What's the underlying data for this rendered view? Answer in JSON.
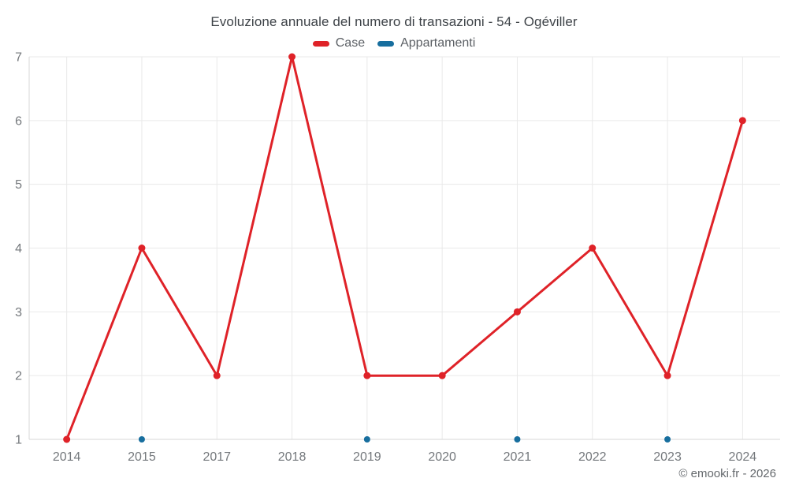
{
  "footer": {
    "copyright": "© emooki.fr - 2026"
  },
  "chart_data": {
    "type": "line",
    "title": "Evoluzione annuale del numero di transazioni - 54 - Ogéviller",
    "categories": [
      "2014",
      "2015",
      "2017",
      "2018",
      "2019",
      "2020",
      "2021",
      "2022",
      "2023",
      "2024"
    ],
    "series": [
      {
        "name": "Case",
        "type": "line",
        "color": "#df2228",
        "marker_radius": 4.5,
        "values": [
          1,
          4,
          2,
          7,
          2,
          2,
          3,
          4,
          2,
          6
        ]
      },
      {
        "name": "Appartamenti",
        "type": "scatter",
        "color": "#176e9e",
        "marker_radius": 4,
        "values": [
          null,
          1,
          null,
          null,
          1,
          null,
          1,
          null,
          1,
          null
        ]
      }
    ],
    "ylim": [
      1,
      7
    ],
    "yticks": [
      1,
      2,
      3,
      4,
      5,
      6,
      7
    ],
    "grid": true,
    "legend_position": "top",
    "colors": {
      "grid": "#e9e9e9",
      "axis": "#d7d7d7",
      "tick_text": "#74787c"
    }
  }
}
